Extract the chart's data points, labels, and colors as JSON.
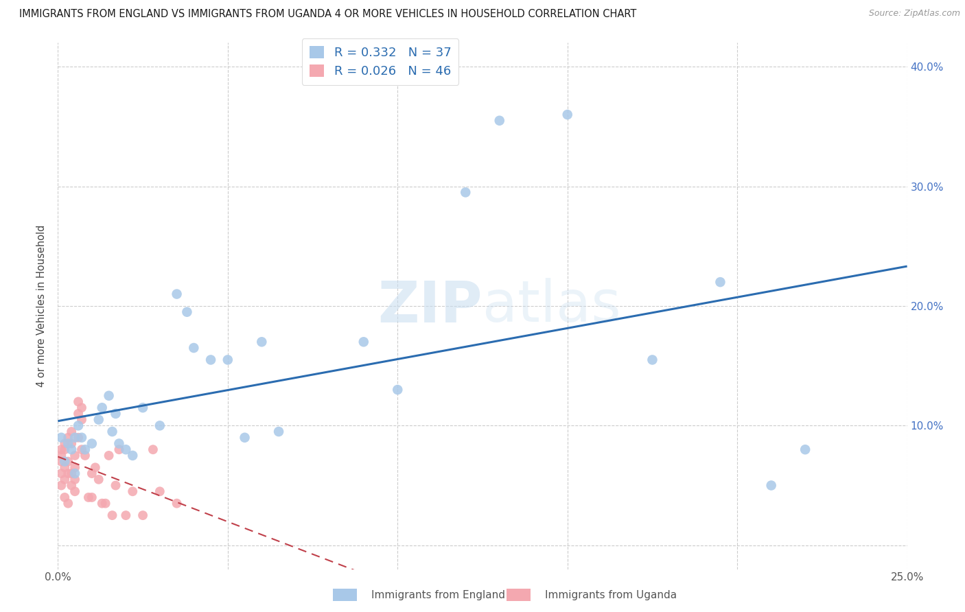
{
  "title": "IMMIGRANTS FROM ENGLAND VS IMMIGRANTS FROM UGANDA 4 OR MORE VEHICLES IN HOUSEHOLD CORRELATION CHART",
  "source": "Source: ZipAtlas.com",
  "ylabel": "4 or more Vehicles in Household",
  "xlabel_bottom_england": "Immigrants from England",
  "xlabel_bottom_uganda": "Immigrants from Uganda",
  "xlim": [
    0,
    0.25
  ],
  "ylim": [
    -0.02,
    0.42
  ],
  "xticks": [
    0,
    0.05,
    0.1,
    0.15,
    0.2,
    0.25
  ],
  "yticks": [
    0.0,
    0.1,
    0.2,
    0.3,
    0.4
  ],
  "ytick_labels_right": [
    "",
    "10.0%",
    "20.0%",
    "30.0%",
    "40.0%"
  ],
  "xtick_labels": [
    "0.0%",
    "",
    "",
    "",
    "",
    "25.0%"
  ],
  "england_R": 0.332,
  "england_N": 37,
  "uganda_R": 0.026,
  "uganda_N": 46,
  "england_color": "#a8c8e8",
  "uganda_color": "#f4a8b0",
  "england_line_color": "#2b6cb0",
  "uganda_line_color": "#c0404a",
  "background_color": "#ffffff",
  "grid_color": "#cccccc",
  "watermark_zip": "ZIP",
  "watermark_atlas": "atlas",
  "england_x": [
    0.001,
    0.002,
    0.003,
    0.004,
    0.005,
    0.005,
    0.006,
    0.007,
    0.008,
    0.01,
    0.012,
    0.013,
    0.015,
    0.016,
    0.017,
    0.018,
    0.02,
    0.022,
    0.025,
    0.03,
    0.035,
    0.038,
    0.04,
    0.045,
    0.05,
    0.055,
    0.06,
    0.065,
    0.09,
    0.1,
    0.12,
    0.13,
    0.15,
    0.175,
    0.195,
    0.21,
    0.22
  ],
  "england_y": [
    0.09,
    0.07,
    0.085,
    0.08,
    0.06,
    0.09,
    0.1,
    0.09,
    0.08,
    0.085,
    0.105,
    0.115,
    0.125,
    0.095,
    0.11,
    0.085,
    0.08,
    0.075,
    0.115,
    0.1,
    0.21,
    0.195,
    0.165,
    0.155,
    0.155,
    0.09,
    0.17,
    0.095,
    0.17,
    0.13,
    0.295,
    0.355,
    0.36,
    0.155,
    0.22,
    0.05,
    0.08
  ],
  "uganda_x": [
    0.001,
    0.001,
    0.001,
    0.001,
    0.001,
    0.002,
    0.002,
    0.002,
    0.002,
    0.002,
    0.003,
    0.003,
    0.003,
    0.003,
    0.004,
    0.004,
    0.004,
    0.004,
    0.005,
    0.005,
    0.005,
    0.005,
    0.006,
    0.006,
    0.006,
    0.007,
    0.007,
    0.007,
    0.008,
    0.009,
    0.01,
    0.01,
    0.011,
    0.012,
    0.013,
    0.014,
    0.015,
    0.016,
    0.017,
    0.018,
    0.02,
    0.022,
    0.025,
    0.028,
    0.03,
    0.035
  ],
  "uganda_y": [
    0.08,
    0.075,
    0.07,
    0.06,
    0.05,
    0.085,
    0.08,
    0.065,
    0.055,
    0.04,
    0.09,
    0.07,
    0.06,
    0.035,
    0.095,
    0.085,
    0.06,
    0.05,
    0.075,
    0.065,
    0.055,
    0.045,
    0.12,
    0.11,
    0.09,
    0.115,
    0.105,
    0.08,
    0.075,
    0.04,
    0.06,
    0.04,
    0.065,
    0.055,
    0.035,
    0.035,
    0.075,
    0.025,
    0.05,
    0.08,
    0.025,
    0.045,
    0.025,
    0.08,
    0.045,
    0.035
  ]
}
